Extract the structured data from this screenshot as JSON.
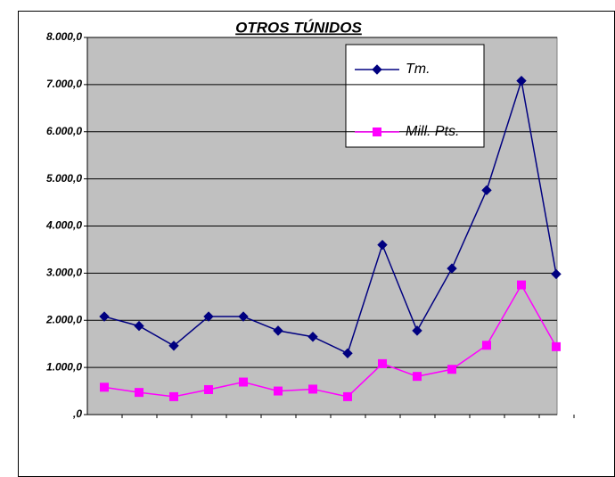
{
  "chart_data": {
    "type": "line",
    "title": "OTROS TÚNIDOS",
    "categories": [
      null,
      null,
      null,
      null,
      null,
      null,
      null,
      null,
      null,
      null,
      null,
      null,
      null,
      null
    ],
    "series": [
      {
        "name": "Tm.",
        "color": "#000080",
        "marker": "diamond",
        "values": [
          2080,
          1880,
          1460,
          2080,
          2080,
          1780,
          1650,
          1300,
          3600,
          1780,
          3100,
          4760,
          7080,
          2980
        ]
      },
      {
        "name": "Mill. Pts.",
        "color": "#ff00ff",
        "marker": "square",
        "values": [
          580,
          470,
          380,
          530,
          690,
          500,
          540,
          380,
          1080,
          810,
          960,
          1470,
          2750,
          1440
        ]
      }
    ],
    "ylim": [
      0,
      8000
    ],
    "yticks": [
      {
        "value": 0,
        "label": ",0"
      },
      {
        "value": 1000,
        "label": "1.000,0"
      },
      {
        "value": 2000,
        "label": "2.000,0"
      },
      {
        "value": 3000,
        "label": "3.000,0"
      },
      {
        "value": 4000,
        "label": "4.000,0"
      },
      {
        "value": 5000,
        "label": "5.000,0"
      },
      {
        "value": 6000,
        "label": "6.000,0"
      },
      {
        "value": 7000,
        "label": "7.000,0"
      },
      {
        "value": 8000,
        "label": "8.000,0"
      }
    ],
    "grid": true,
    "legend": "top-right"
  }
}
